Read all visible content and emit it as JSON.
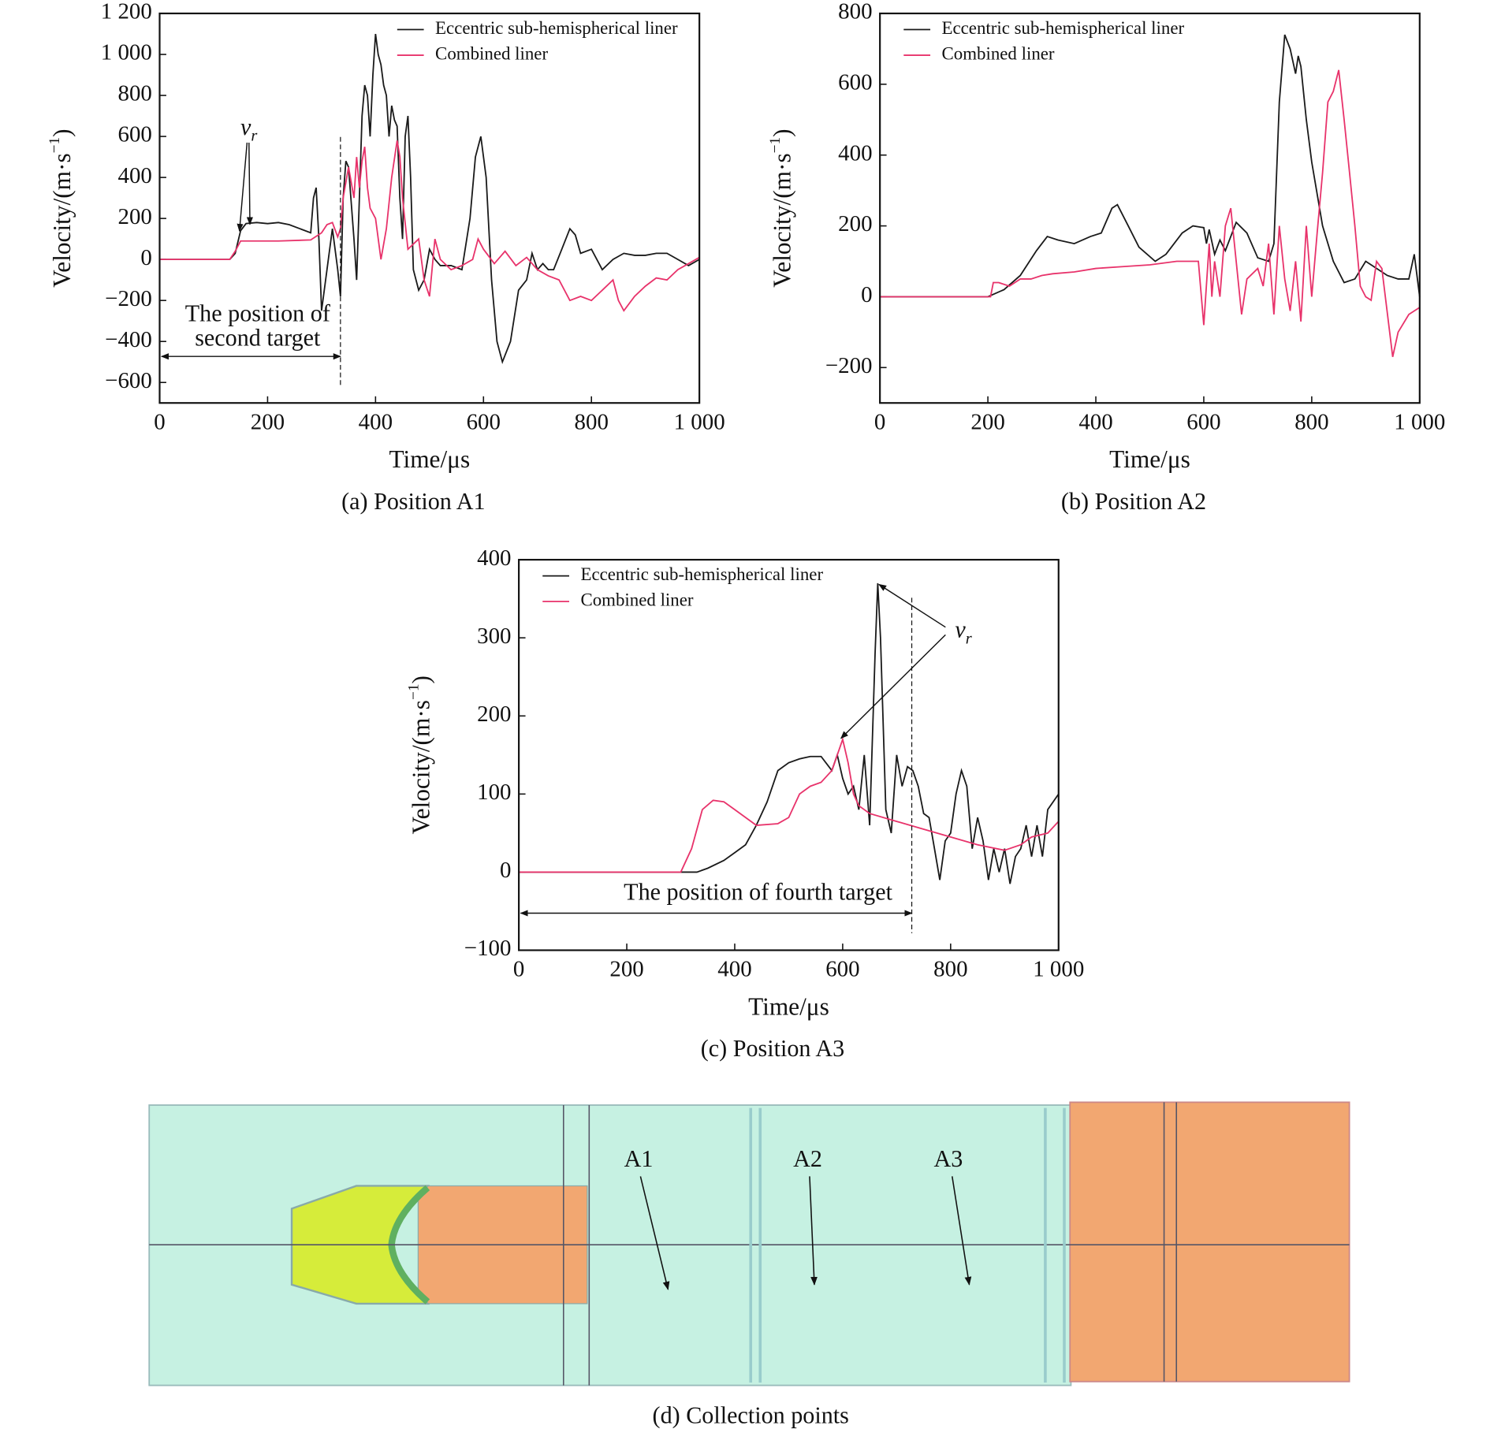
{
  "chart_data": [
    {
      "type": "line",
      "caption": "(a) Position A1",
      "xlabel": "Time/μs",
      "ylabel": "Velocity/(m·s",
      "ylabel_sup": "−1",
      "ylabel_end": ")",
      "xlim": [
        0,
        1000
      ],
      "xticks": [
        0,
        200,
        400,
        600,
        800,
        {
          "value": 1000,
          "label": "1 000"
        }
      ],
      "ylim": [
        -700,
        1200
      ],
      "yticks": [
        {
          "value": -600,
          "label": "−600"
        },
        {
          "value": -400,
          "label": "−400"
        },
        {
          "value": -200,
          "label": "−200"
        },
        0,
        200,
        400,
        600,
        800,
        {
          "value": 1000,
          "label": "1 000"
        },
        {
          "value": 1200,
          "label": "1 200"
        }
      ],
      "legend": "upper center",
      "annotations": [
        {
          "text": "v",
          "sub": "r"
        },
        {
          "text": "The position of",
          "text2": "second target",
          "target_time": 335
        }
      ],
      "series": [
        {
          "name": "Eccentric sub-hemispherical liner",
          "color": "#1a1a1a",
          "x": [
            0,
            130,
            140,
            150,
            160,
            180,
            200,
            220,
            240,
            260,
            280,
            285,
            290,
            295,
            300,
            310,
            320,
            330,
            335,
            340,
            345,
            350,
            360,
            365,
            370,
            375,
            380,
            385,
            390,
            395,
            400,
            405,
            410,
            415,
            420,
            425,
            430,
            435,
            440,
            445,
            450,
            455,
            460,
            465,
            470,
            480,
            490,
            500,
            510,
            520,
            540,
            560,
            575,
            585,
            595,
            605,
            615,
            625,
            635,
            650,
            665,
            680,
            690,
            700,
            710,
            720,
            730,
            745,
            760,
            770,
            780,
            800,
            820,
            840,
            860,
            880,
            900,
            920,
            940,
            960,
            980,
            1000
          ],
          "values": [
            0,
            0,
            30,
            140,
            175,
            180,
            175,
            180,
            170,
            150,
            130,
            300,
            350,
            100,
            -250,
            -50,
            150,
            -50,
            -180,
            300,
            480,
            450,
            100,
            -100,
            300,
            700,
            850,
            800,
            600,
            900,
            1100,
            1000,
            950,
            850,
            800,
            600,
            750,
            680,
            650,
            300,
            100,
            600,
            700,
            400,
            -50,
            -150,
            -100,
            50,
            0,
            -30,
            -30,
            -50,
            200,
            500,
            600,
            400,
            -100,
            -400,
            -500,
            -400,
            -150,
            -100,
            30,
            -50,
            -20,
            -50,
            -50,
            50,
            150,
            120,
            30,
            50,
            -50,
            0,
            30,
            20,
            20,
            30,
            30,
            0,
            -30,
            0
          ]
        },
        {
          "name": "Combined liner",
          "color": "#e8336b",
          "x": [
            0,
            130,
            140,
            150,
            180,
            220,
            280,
            300,
            310,
            320,
            330,
            335,
            340,
            350,
            360,
            365,
            370,
            375,
            380,
            385,
            390,
            400,
            410,
            420,
            430,
            440,
            445,
            450,
            460,
            480,
            490,
            500,
            510,
            520,
            540,
            560,
            580,
            590,
            600,
            620,
            640,
            660,
            680,
            700,
            720,
            740,
            760,
            780,
            800,
            820,
            840,
            850,
            860,
            880,
            900,
            920,
            940,
            960,
            980,
            1000
          ],
          "values": [
            0,
            0,
            40,
            90,
            90,
            90,
            95,
            130,
            170,
            180,
            110,
            150,
            300,
            450,
            300,
            500,
            350,
            480,
            550,
            350,
            250,
            200,
            0,
            150,
            400,
            580,
            500,
            300,
            50,
            100,
            -100,
            -180,
            100,
            0,
            -50,
            -30,
            0,
            100,
            50,
            -20,
            40,
            -30,
            10,
            -50,
            -80,
            -100,
            -200,
            -180,
            -200,
            -150,
            -100,
            -200,
            -250,
            -180,
            -130,
            -90,
            -100,
            -50,
            -20,
            10
          ]
        }
      ]
    },
    {
      "type": "line",
      "caption": "(b) Position A2",
      "xlabel": "Time/μs",
      "ylabel": "Velocity/(m·s",
      "ylabel_sup": "−1",
      "ylabel_end": ")",
      "xlim": [
        0,
        1000
      ],
      "xticks": [
        0,
        200,
        400,
        600,
        800,
        {
          "value": 1000,
          "label": "1 000"
        }
      ],
      "ylim": [
        -300,
        800
      ],
      "yticks": [
        {
          "value": -200,
          "label": "−200"
        },
        0,
        200,
        400,
        600,
        800
      ],
      "legend": "upper left",
      "series": [
        {
          "name": "Eccentric sub-hemispherical liner",
          "color": "#1a1a1a",
          "x": [
            0,
            200,
            230,
            260,
            290,
            310,
            330,
            360,
            390,
            410,
            430,
            440,
            460,
            480,
            510,
            530,
            560,
            580,
            600,
            605,
            610,
            620,
            630,
            640,
            660,
            680,
            700,
            720,
            730,
            740,
            750,
            760,
            770,
            775,
            780,
            790,
            800,
            820,
            840,
            860,
            880,
            900,
            920,
            940,
            960,
            980,
            990,
            1000
          ],
          "values": [
            0,
            0,
            20,
            60,
            130,
            170,
            160,
            150,
            170,
            180,
            250,
            260,
            200,
            140,
            100,
            120,
            180,
            200,
            195,
            150,
            190,
            120,
            160,
            130,
            210,
            180,
            110,
            100,
            150,
            550,
            740,
            700,
            630,
            680,
            650,
            500,
            380,
            200,
            100,
            40,
            50,
            100,
            80,
            60,
            50,
            50,
            120,
            0
          ]
        },
        {
          "name": "Combined liner",
          "color": "#e8336b",
          "x": [
            0,
            205,
            210,
            220,
            240,
            260,
            280,
            300,
            320,
            360,
            400,
            450,
            500,
            550,
            590,
            600,
            610,
            615,
            620,
            630,
            640,
            650,
            660,
            670,
            680,
            700,
            710,
            720,
            730,
            740,
            750,
            760,
            770,
            780,
            790,
            800,
            810,
            820,
            830,
            840,
            850,
            860,
            870,
            880,
            890,
            900,
            910,
            920,
            930,
            950,
            960,
            980,
            1000
          ],
          "values": [
            0,
            0,
            40,
            40,
            30,
            50,
            50,
            60,
            65,
            70,
            80,
            85,
            90,
            100,
            100,
            -80,
            150,
            0,
            100,
            0,
            200,
            250,
            100,
            -50,
            50,
            80,
            30,
            150,
            -50,
            200,
            50,
            -40,
            100,
            -70,
            200,
            0,
            180,
            350,
            550,
            580,
            640,
            500,
            350,
            200,
            30,
            0,
            -10,
            100,
            80,
            -170,
            -100,
            -50,
            -30
          ]
        }
      ]
    },
    {
      "type": "line",
      "caption": "(c) Position A3",
      "xlabel": "Time/μs",
      "ylabel": "Velocity/(m·s",
      "ylabel_sup": "−1",
      "ylabel_end": ")",
      "xlim": [
        0,
        1000
      ],
      "xticks": [
        0,
        200,
        400,
        600,
        800,
        {
          "value": 1000,
          "label": "1 000"
        }
      ],
      "ylim": [
        -100,
        400
      ],
      "yticks": [
        {
          "value": -100,
          "label": "−100"
        },
        0,
        100,
        200,
        300,
        400
      ],
      "legend": "upper left",
      "annotations": [
        {
          "text": "v",
          "sub": "r"
        },
        {
          "text": "The position of fourth target",
          "target_time": 728
        }
      ],
      "series": [
        {
          "name": "Eccentric sub-hemispherical liner",
          "color": "#1a1a1a",
          "x": [
            0,
            300,
            330,
            350,
            380,
            400,
            420,
            440,
            460,
            480,
            500,
            520,
            540,
            560,
            580,
            590,
            600,
            610,
            620,
            630,
            640,
            650,
            660,
            665,
            670,
            680,
            690,
            700,
            710,
            720,
            730,
            740,
            750,
            760,
            770,
            780,
            790,
            800,
            810,
            820,
            830,
            840,
            850,
            860,
            870,
            880,
            890,
            900,
            910,
            920,
            930,
            940,
            950,
            960,
            970,
            980,
            1000
          ],
          "values": [
            0,
            0,
            0,
            5,
            15,
            25,
            35,
            60,
            90,
            130,
            140,
            145,
            148,
            148,
            130,
            150,
            120,
            100,
            110,
            80,
            150,
            60,
            280,
            370,
            300,
            80,
            50,
            150,
            110,
            135,
            130,
            110,
            75,
            70,
            30,
            -10,
            40,
            50,
            100,
            130,
            110,
            30,
            70,
            40,
            -10,
            30,
            0,
            30,
            -15,
            20,
            30,
            60,
            20,
            60,
            20,
            80,
            100
          ]
        },
        {
          "name": "Combined liner",
          "color": "#e8336b",
          "x": [
            0,
            300,
            320,
            340,
            360,
            380,
            400,
            420,
            440,
            480,
            500,
            520,
            540,
            560,
            580,
            590,
            600,
            610,
            620,
            630,
            650,
            700,
            750,
            800,
            850,
            900,
            930,
            950,
            980,
            1000
          ],
          "values": [
            0,
            0,
            30,
            80,
            92,
            90,
            80,
            70,
            60,
            62,
            70,
            100,
            110,
            115,
            130,
            150,
            170,
            140,
            100,
            85,
            75,
            65,
            55,
            45,
            35,
            28,
            35,
            45,
            50,
            65
          ]
        }
      ]
    }
  ],
  "diagram": {
    "labels": [
      "A1",
      "A2",
      "A3"
    ],
    "caption": "(d) Collection points"
  }
}
